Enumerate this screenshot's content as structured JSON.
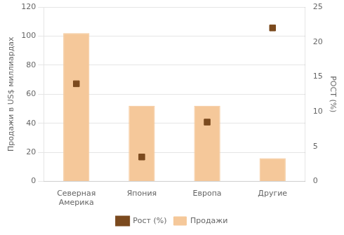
{
  "chart_data": {
    "type": "bar",
    "categories": [
      "Северная\nАмерика",
      "Япония",
      "Европа",
      "Другие"
    ],
    "series": [
      {
        "name": "Продажи",
        "color": "#F5C89A",
        "values": [
          102,
          52,
          52,
          16
        ]
      },
      {
        "name": "Рост (%)",
        "type": "scatter",
        "marker": "square",
        "color": "#7B4A1E",
        "values": [
          14,
          3.5,
          8.5,
          22
        ],
        "axis": "y2"
      }
    ],
    "y_label": "Продажи в US$ миллиардах",
    "y2_label": "РОСТ (%)",
    "ylim": [
      0,
      120
    ],
    "yticks": [
      0,
      20,
      40,
      60,
      80,
      100,
      120
    ],
    "y2lim": [
      0,
      25
    ],
    "y2ticks": [
      0,
      5,
      10,
      15,
      20,
      25
    ],
    "grid": true,
    "legend": "bottom"
  }
}
